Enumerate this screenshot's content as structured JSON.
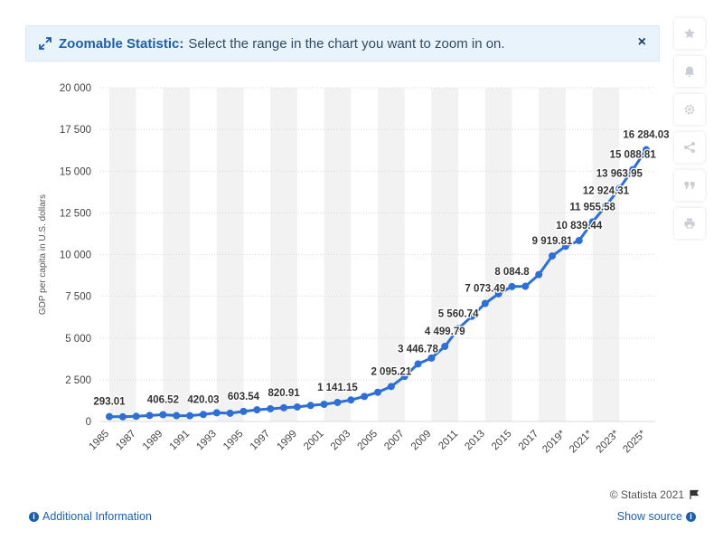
{
  "banner": {
    "title": "Zoomable Statistic:",
    "text": "Select the range in the chart you want to zoom in on.",
    "close_label": "×"
  },
  "sidebar": {
    "icons": [
      "star-icon",
      "bell-icon",
      "gear-icon",
      "share-icon",
      "quote-icon",
      "print-icon"
    ]
  },
  "footer": {
    "credit": "© Statista 2021",
    "additional_info": "Additional Information",
    "show_source": "Show source"
  },
  "colors": {
    "line": "#2e6fd6",
    "band": "#f2f2f2",
    "grid": "#d9d9d9"
  },
  "chart_data": {
    "type": "line",
    "title": "",
    "xlabel": "",
    "ylabel": "GDP per capita in U.S. dollars",
    "ylim": [
      0,
      20000
    ],
    "yticks": [
      "0",
      "2 500",
      "5 000",
      "7 500",
      "10 000",
      "12 500",
      "15 000",
      "17 500",
      "20 000"
    ],
    "x": [
      1985,
      1986,
      1987,
      1988,
      1989,
      1990,
      1991,
      1992,
      1993,
      1994,
      1995,
      1996,
      1997,
      1998,
      1999,
      2000,
      2001,
      2002,
      2003,
      2004,
      2005,
      2006,
      2007,
      2008,
      2009,
      2010,
      2011,
      2012,
      2013,
      2014,
      2015,
      2016,
      2017,
      2018,
      2019,
      2020,
      2021,
      2022,
      2023,
      2024,
      2025
    ],
    "xtick_labels": [
      "1985",
      "1987",
      "1989",
      "1991",
      "1993",
      "1995",
      "1997",
      "1999",
      "2001",
      "2003",
      "2005",
      "2007",
      "2009",
      "2011",
      "2013",
      "2015",
      "2017",
      "2019*",
      "2021*",
      "2023*",
      "2025*"
    ],
    "values": [
      293.01,
      280,
      310,
      360,
      406.52,
      350,
      345,
      420.03,
      520,
      495,
      603.54,
      700,
      760,
      820.91,
      870,
      960,
      1030,
      1141.15,
      1290,
      1500,
      1750,
      2095.21,
      2700,
      3446.78,
      3800,
      4499.79,
      5560.74,
      6300,
      7073.49,
      7650,
      8084.8,
      8100,
      8800,
      9919.81,
      10500,
      10839.44,
      11955.58,
      12924.31,
      13963.95,
      15088.81,
      16284.03
    ],
    "data_labels": [
      {
        "x": 1985,
        "text": "293.01"
      },
      {
        "x": 1989,
        "text": "406.52"
      },
      {
        "x": 1992,
        "text": "420.03"
      },
      {
        "x": 1995,
        "text": "603.54"
      },
      {
        "x": 1998,
        "text": "820.91"
      },
      {
        "x": 2002,
        "text": "1 141.15"
      },
      {
        "x": 2006,
        "text": "2 095.21"
      },
      {
        "x": 2008,
        "text": "3 446.78"
      },
      {
        "x": 2010,
        "text": "4 499.79"
      },
      {
        "x": 2011,
        "text": "5 560.74"
      },
      {
        "x": 2013,
        "text": "7 073.49"
      },
      {
        "x": 2015,
        "text": "8 084.8"
      },
      {
        "x": 2018,
        "text": "9 919.81"
      },
      {
        "x": 2020,
        "text": "10 839.44"
      },
      {
        "x": 2021,
        "text": "11 955.58"
      },
      {
        "x": 2022,
        "text": "12 924.31"
      },
      {
        "x": 2023,
        "text": "13 963.95"
      },
      {
        "x": 2024,
        "text": "15 088.81"
      },
      {
        "x": 2025,
        "text": "16 284.03"
      }
    ],
    "grid": true,
    "legend": "none"
  }
}
